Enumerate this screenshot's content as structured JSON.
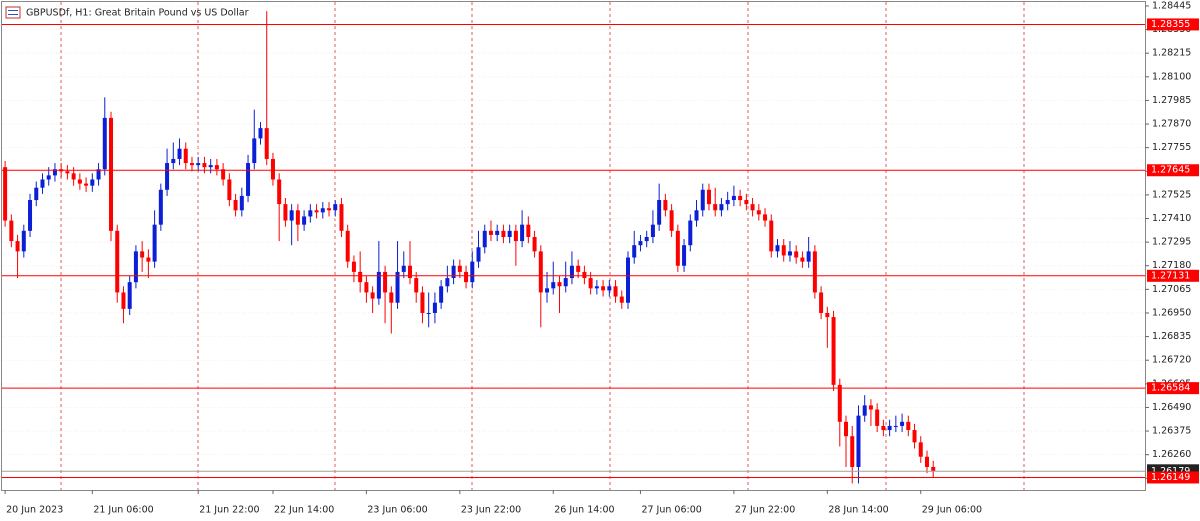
{
  "chart_data": {
    "type": "candlestick",
    "title": "GBPUSDf, H1:  Great Britain Pound vs US Dollar",
    "up_color": "#0a1fd6",
    "down_color": "#ff0000",
    "level_color": "#ff0000",
    "bid_color": "#a0a0a0",
    "grid": true,
    "open": [
      1.2766,
      1.274,
      1.273,
      1.2725,
      1.2735,
      1.275,
      1.2756,
      1.276,
      1.2762,
      1.2765,
      1.2764,
      1.2763,
      1.276,
      1.2758,
      1.2757,
      1.276,
      1.2765,
      1.279,
      1.2735,
      1.2705,
      1.2697,
      1.271,
      1.2725,
      1.2722,
      1.272,
      1.2738,
      1.2755,
      1.2768,
      1.277,
      1.2775,
      1.2768,
      1.2767,
      1.2768,
      1.2766,
      1.2767,
      1.2765,
      1.276,
      1.275,
      1.2745,
      1.2752,
      1.2768,
      1.278,
      1.2785,
      1.277,
      1.276,
      1.2748,
      1.274,
      1.2745,
      1.2738,
      1.2742,
      1.2745,
      1.2744,
      1.2746,
      1.2745,
      1.2748,
      1.2735,
      1.272,
      1.2715,
      1.271,
      1.2705,
      1.2702,
      1.2715,
      1.2705,
      1.27,
      1.2715,
      1.2718,
      1.2712,
      1.2705,
      1.2695,
      1.2695,
      1.27,
      1.2708,
      1.2712,
      1.2718,
      1.2715,
      1.271,
      1.272,
      1.2727,
      1.2735,
      1.2733,
      1.2735,
      1.2732,
      1.2735,
      1.273,
      1.2738,
      1.2732,
      1.2725,
      1.2705,
      1.2707,
      1.271,
      1.2708,
      1.2712,
      1.2718,
      1.2715,
      1.2712,
      1.2707,
      1.2708,
      1.2706,
      1.2708,
      1.2703,
      1.27,
      1.2722,
      1.2728,
      1.273,
      1.2732,
      1.2738,
      1.275,
      1.2745,
      1.2735,
      1.2718,
      1.2728,
      1.274,
      1.2745,
      1.2755,
      1.2748,
      1.2745,
      1.2748,
      1.275,
      1.2752,
      1.275,
      1.2748,
      1.2745,
      1.2743,
      1.274,
      1.2725,
      1.2728,
      1.2723,
      1.2725,
      1.2722,
      1.272,
      1.2725,
      1.2705,
      1.2695,
      1.2693,
      1.266,
      1.2642,
      1.2635,
      1.262,
      1.2645,
      1.265,
      1.2648,
      1.264,
      1.2638,
      1.264,
      1.264,
      1.2642,
      1.2638,
      1.2632,
      1.2625,
      1.262
    ],
    "high": [
      1.2769,
      1.2743,
      1.2733,
      1.2738,
      1.2753,
      1.2759,
      1.2763,
      1.2766,
      1.2768,
      1.2768,
      1.2767,
      1.2766,
      1.2763,
      1.2761,
      1.2763,
      1.2768,
      1.28,
      1.2793,
      1.2738,
      1.2708,
      1.2713,
      1.2728,
      1.273,
      1.2726,
      1.2745,
      1.2758,
      1.2775,
      1.2778,
      1.278,
      1.2778,
      1.2771,
      1.2771,
      1.2771,
      1.277,
      1.277,
      1.2768,
      1.2763,
      1.2753,
      1.2756,
      1.2772,
      1.2794,
      1.2788,
      1.2842,
      1.2773,
      1.2763,
      1.2751,
      1.2748,
      1.2748,
      1.2745,
      1.2748,
      1.2748,
      1.2749,
      1.2749,
      1.275,
      1.2751,
      1.2738,
      1.2723,
      1.2725,
      1.2713,
      1.2708,
      1.273,
      1.2718,
      1.2708,
      1.273,
      1.2725,
      1.273,
      1.2715,
      1.2708,
      1.2705,
      1.2705,
      1.2711,
      1.2718,
      1.2721,
      1.2721,
      1.2718,
      1.2725,
      1.2735,
      1.2738,
      1.274,
      1.2738,
      1.2738,
      1.2738,
      1.2738,
      1.2745,
      1.2742,
      1.2735,
      1.2728,
      1.2715,
      1.272,
      1.2713,
      1.272,
      1.2725,
      1.2721,
      1.2718,
      1.2715,
      1.2711,
      1.2711,
      1.2711,
      1.2711,
      1.2706,
      1.2725,
      1.2735,
      1.2733,
      1.2735,
      1.2745,
      1.2758,
      1.2753,
      1.2748,
      1.2738,
      1.2731,
      1.2743,
      1.275,
      1.2758,
      1.2758,
      1.2756,
      1.2751,
      1.2754,
      1.2757,
      1.2755,
      1.2753,
      1.2751,
      1.2748,
      1.2746,
      1.2743,
      1.2731,
      1.2731,
      1.273,
      1.2728,
      1.2725,
      1.2732,
      1.2728,
      1.2708,
      1.2698,
      1.2696,
      1.2663,
      1.2645,
      1.264,
      1.265,
      1.2655,
      1.2653,
      1.2651,
      1.2643,
      1.2643,
      1.2645,
      1.2646,
      1.2645,
      1.2641,
      1.2635,
      1.2628,
      1.2623
    ],
    "low": [
      1.2737,
      1.2727,
      1.2712,
      1.2722,
      1.2732,
      1.2747,
      1.2753,
      1.2757,
      1.2759,
      1.2761,
      1.276,
      1.2757,
      1.2755,
      1.2754,
      1.2754,
      1.2757,
      1.2762,
      1.273,
      1.27,
      1.269,
      1.2694,
      1.2707,
      1.2715,
      1.2712,
      1.2717,
      1.2735,
      1.2752,
      1.2765,
      1.2767,
      1.2765,
      1.2764,
      1.2764,
      1.2763,
      1.2763,
      1.2762,
      1.2757,
      1.2747,
      1.2742,
      1.2742,
      1.2749,
      1.2765,
      1.2777,
      1.2767,
      1.2757,
      1.273,
      1.2737,
      1.2728,
      1.273,
      1.2735,
      1.2739,
      1.2741,
      1.2741,
      1.2742,
      1.2742,
      1.2732,
      1.2717,
      1.271,
      1.2705,
      1.27,
      1.2695,
      1.2699,
      1.269,
      1.2685,
      1.2697,
      1.2712,
      1.2709,
      1.27,
      1.269,
      1.2688,
      1.269,
      1.2697,
      1.2705,
      1.2709,
      1.2712,
      1.2707,
      1.2707,
      1.2717,
      1.2724,
      1.273,
      1.273,
      1.2729,
      1.2729,
      1.2718,
      1.2727,
      1.2729,
      1.2722,
      1.2688,
      1.27,
      1.2704,
      1.2695,
      1.2705,
      1.2709,
      1.2712,
      1.2709,
      1.2704,
      1.2704,
      1.2703,
      1.2703,
      1.27,
      1.2697,
      1.2697,
      1.2719,
      1.2725,
      1.2727,
      1.2729,
      1.2735,
      1.2742,
      1.2732,
      1.2715,
      1.2715,
      1.2725,
      1.2737,
      1.2742,
      1.2745,
      1.2742,
      1.2742,
      1.2745,
      1.2747,
      1.2747,
      1.2745,
      1.2742,
      1.274,
      1.2737,
      1.2722,
      1.2722,
      1.272,
      1.272,
      1.2719,
      1.2717,
      1.2717,
      1.2702,
      1.2692,
      1.2678,
      1.2657,
      1.263,
      1.262,
      1.2612,
      1.2612,
      1.2642,
      1.264,
      1.2637,
      1.2635,
      1.2635,
      1.2637,
      1.2637,
      1.2635,
      1.2629,
      1.2622,
      1.2617,
      1.2615
    ],
    "close": [
      1.274,
      1.273,
      1.2725,
      1.2735,
      1.275,
      1.2756,
      1.276,
      1.2762,
      1.2765,
      1.2764,
      1.2763,
      1.276,
      1.2758,
      1.2757,
      1.276,
      1.2765,
      1.279,
      1.2735,
      1.2705,
      1.2697,
      1.271,
      1.2725,
      1.2722,
      1.272,
      1.2738,
      1.2755,
      1.2768,
      1.277,
      1.2775,
      1.2768,
      1.2767,
      1.2768,
      1.2766,
      1.2767,
      1.2765,
      1.276,
      1.275,
      1.2745,
      1.2752,
      1.2768,
      1.278,
      1.2785,
      1.277,
      1.276,
      1.2748,
      1.274,
      1.2745,
      1.2738,
      1.2742,
      1.2745,
      1.2744,
      1.2746,
      1.2745,
      1.2748,
      1.2735,
      1.272,
      1.2715,
      1.271,
      1.2705,
      1.2702,
      1.2715,
      1.2705,
      1.27,
      1.2715,
      1.2718,
      1.2712,
      1.2705,
      1.2695,
      1.2695,
      1.27,
      1.2708,
      1.2712,
      1.2718,
      1.2715,
      1.271,
      1.272,
      1.2727,
      1.2735,
      1.2733,
      1.2735,
      1.2732,
      1.2735,
      1.273,
      1.2738,
      1.2732,
      1.2725,
      1.2705,
      1.2707,
      1.271,
      1.2708,
      1.2712,
      1.2718,
      1.2715,
      1.2712,
      1.2707,
      1.2708,
      1.2706,
      1.2708,
      1.2703,
      1.27,
      1.2722,
      1.2728,
      1.273,
      1.2732,
      1.2738,
      1.275,
      1.2745,
      1.2735,
      1.2718,
      1.2728,
      1.274,
      1.2745,
      1.2755,
      1.2748,
      1.2745,
      1.2748,
      1.275,
      1.2752,
      1.275,
      1.2748,
      1.2745,
      1.2743,
      1.274,
      1.2725,
      1.2728,
      1.2723,
      1.2725,
      1.2722,
      1.272,
      1.2725,
      1.2705,
      1.2695,
      1.2693,
      1.266,
      1.2642,
      1.2635,
      1.262,
      1.2645,
      1.265,
      1.2648,
      1.264,
      1.2638,
      1.264,
      1.264,
      1.2642,
      1.2638,
      1.2632,
      1.2625,
      1.262,
      1.26179
    ],
    "xlim": [
      -0.5,
      183
    ],
    "xticks": [
      {
        "value": 0,
        "label": "20 Jun 2023"
      },
      {
        "value": 14,
        "label": "21 Jun 06:00"
      },
      {
        "value": 31,
        "label": "21 Jun 22:00"
      },
      {
        "value": 43,
        "label": "22 Jun 14:00"
      },
      {
        "value": 58,
        "label": "23 Jun 06:00"
      },
      {
        "value": 73,
        "label": "23 Jun 22:00"
      },
      {
        "value": 88,
        "label": "26 Jun 14:00"
      },
      {
        "value": 102,
        "label": "27 Jun 06:00"
      },
      {
        "value": 117,
        "label": "27 Jun 22:00"
      },
      {
        "value": 132,
        "label": "28 Jun 14:00"
      },
      {
        "value": 147,
        "label": "29 Jun 06:00"
      }
    ],
    "ylim": [
      1.26088,
      1.28474
    ],
    "yticks": [
      1.28445,
      {
        "value": 1.2833,
        "label": "1.28330"
      },
      1.28215,
      {
        "value": 1.281,
        "label": "1.28100"
      },
      1.27985,
      {
        "value": 1.2787,
        "label": "1.27870"
      },
      1.27755,
      {
        "value": 1.2764,
        "label": "1.27640"
      },
      1.27525,
      {
        "value": 1.2741,
        "label": "1.27410"
      },
      1.27295,
      {
        "value": 1.2718,
        "label": "1.27180"
      },
      1.27065,
      {
        "value": 1.2695,
        "label": "1.26950"
      },
      1.26835,
      {
        "value": 1.2672,
        "label": "1.26720"
      },
      1.26605,
      {
        "value": 1.2649,
        "label": "1.26490"
      },
      1.26375,
      {
        "value": 1.2626,
        "label": "1.26260"
      },
      1.26145
    ],
    "levels": [
      1.28355,
      1.27645,
      1.27131,
      1.26584,
      1.26149
    ],
    "bid": 1.26179
  }
}
